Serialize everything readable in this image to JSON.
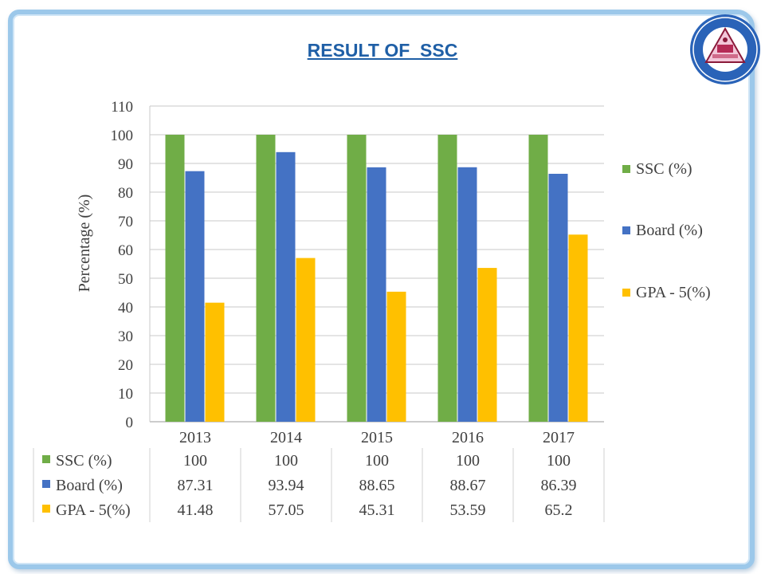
{
  "slide": {
    "title": "RESULT OF  SSC"
  },
  "logo": {
    "icon": "college-emblem-icon"
  },
  "colors": {
    "ssc": "#70ad47",
    "board": "#4472c4",
    "gpa5": "#ffc000",
    "frame": "#9cc8ea",
    "title": "#1f5fa6"
  },
  "chart_data": {
    "type": "bar",
    "categories": [
      "2013",
      "2014",
      "2015",
      "2016",
      "2017"
    ],
    "series": [
      {
        "name": "SSC (%)",
        "values": [
          100,
          100,
          100,
          100,
          100
        ]
      },
      {
        "name": "Board (%)",
        "values": [
          87.31,
          93.94,
          88.65,
          88.67,
          86.39
        ]
      },
      {
        "name": "GPA - 5(%)",
        "values": [
          41.48,
          57.05,
          45.31,
          53.59,
          65.2
        ]
      }
    ],
    "data_table": [
      [
        "100",
        "100",
        "100",
        "100",
        "100"
      ],
      [
        "87.31",
        "93.94",
        "88.65",
        "88.67",
        "86.39"
      ],
      [
        "41.48",
        "57.05",
        "45.31",
        "53.59",
        "65.2"
      ]
    ],
    "ylabel": "Percentage (%)",
    "ylim": [
      0,
      110
    ],
    "yticks": [
      "0",
      "10",
      "20",
      "30",
      "40",
      "50",
      "60",
      "70",
      "80",
      "90",
      "100",
      "110"
    ],
    "grid": true,
    "legend": "right"
  }
}
